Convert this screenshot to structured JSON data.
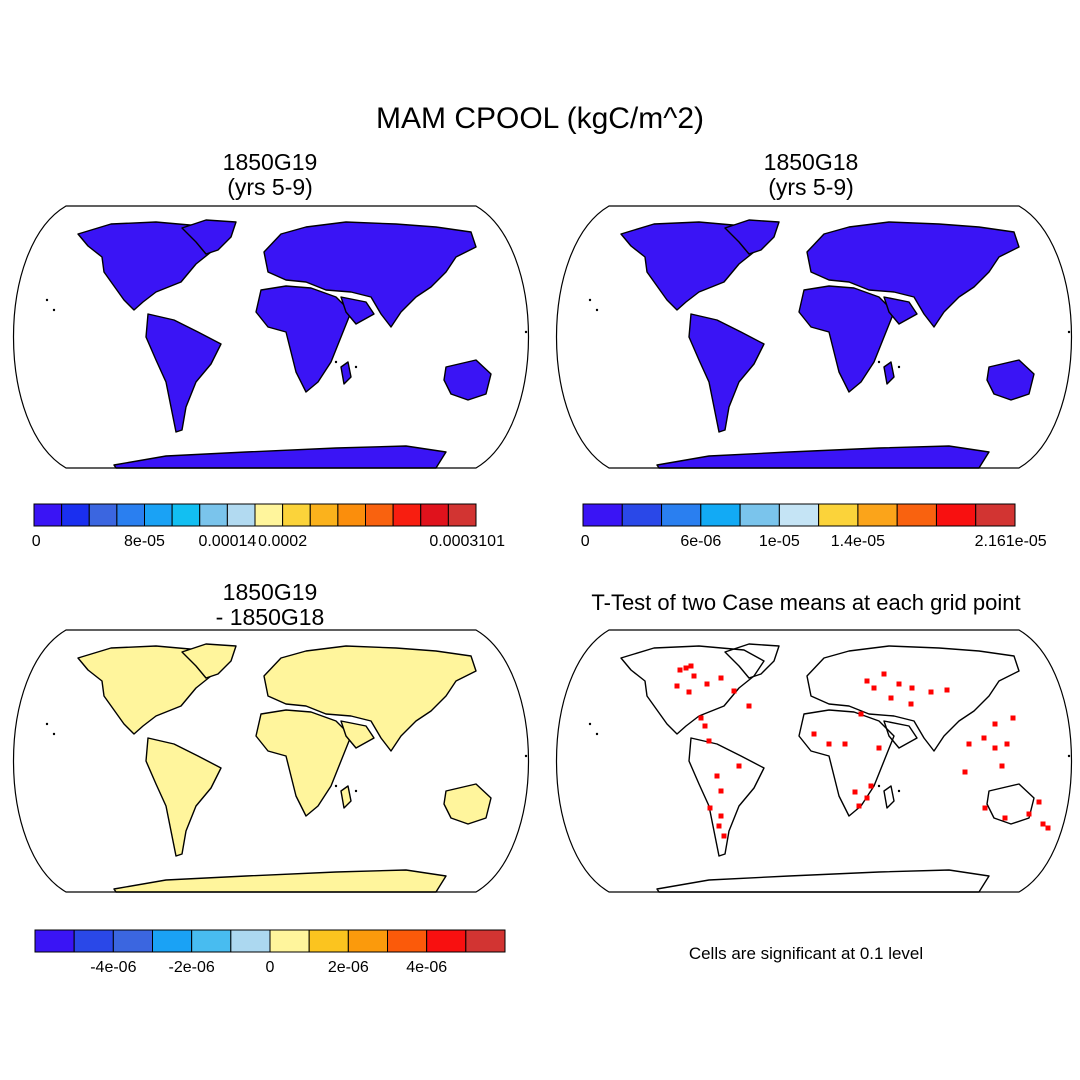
{
  "title": "MAM CPOOL (kgC/m^2)",
  "colors": {
    "land_case1": "#3a14f5",
    "land_case2": "#3a14f5",
    "land_diff": "#fff59c",
    "signif": "#ff0000"
  },
  "panels": {
    "top_left": {
      "title_line1": "1850G19",
      "title_line2": "(yrs 5-9)"
    },
    "top_right": {
      "title_line1": "1850G18",
      "title_line2": "(yrs 5-9)"
    },
    "bottom_left": {
      "title_line1": "1850G19",
      "title_line2": "- 1850G18"
    },
    "bottom_right": {
      "title": "T-Test of two Case means at each grid point",
      "note": "Cells are significant at 0.1 level"
    }
  },
  "colorbars": {
    "top_left": {
      "colors": [
        "#3a14f5",
        "#1a2ff0",
        "#3b66e0",
        "#2a7ff0",
        "#1aa2f5",
        "#12bff2",
        "#7ac4ec",
        "#b2daf1",
        "#fff59c",
        "#fbd33a",
        "#fbb21c",
        "#fb8e0c",
        "#f9620f",
        "#f81e10",
        "#e0121c",
        "#d23432"
      ],
      "labels": [
        "0",
        "8e-05",
        "0.00014",
        "0.0002",
        "0.0003101"
      ]
    },
    "top_right": {
      "colors": [
        "#3a14f5",
        "#2a48e8",
        "#2a7ff0",
        "#12aaf5",
        "#7ac4ec",
        "#c5e4f5",
        "#fbd33a",
        "#fba41a",
        "#f9620f",
        "#f81010",
        "#d23432"
      ],
      "labels": [
        "0",
        "6e-06",
        "1e-05",
        "1.4e-05",
        "2.161e-05"
      ]
    },
    "bottom_left": {
      "colors": [
        "#3a14f5",
        "#2a48e8",
        "#3b66e0",
        "#1aa2f5",
        "#48bcf0",
        "#acd8f0",
        "#fff59c",
        "#fbc41f",
        "#fb9a0c",
        "#fb5a0a",
        "#f81010",
        "#d23432"
      ],
      "labels": [
        "-4e-06",
        "-2e-06",
        "0",
        "2e-06",
        "4e-06"
      ]
    }
  }
}
